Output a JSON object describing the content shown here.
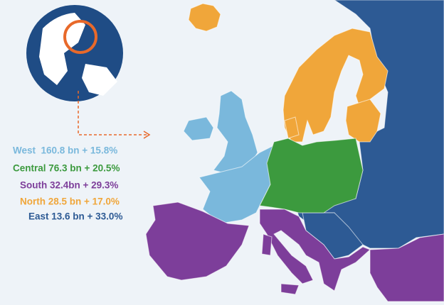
{
  "legend": [
    {
      "text": "West  160.8 bn + 15.8%",
      "color": "#7ab8dc"
    },
    {
      "text": "Central 76.3 bn + 20.5%",
      "color": "#3c9a3e"
    },
    {
      "text": "South 32.4bn + 29.3%",
      "color": "#7d3e9a"
    },
    {
      "text": "North 28.5 bn + 17.0%",
      "color": "#f0a63a"
    },
    {
      "text": "East 13.6 bn + 33.0%",
      "color": "#2d5a94"
    }
  ]
}
